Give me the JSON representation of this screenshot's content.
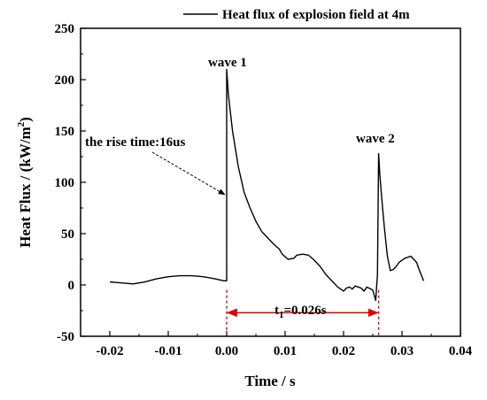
{
  "chart_data": {
    "type": "line",
    "title": "",
    "xlabel": "Time / s",
    "ylabel_main": "Heat Flux / (kW/m",
    "ylabel_sup": "2",
    "ylabel_tail": ")",
    "xlim": [
      -0.025,
      0.04
    ],
    "ylim": [
      -50,
      250
    ],
    "x_ticks": [
      -0.02,
      -0.01,
      0.0,
      0.01,
      0.02,
      0.03,
      0.04
    ],
    "x_tick_labels": [
      "-0.02",
      "-0.01",
      "0.00",
      "0.01",
      "0.02",
      "0.03",
      "0.04"
    ],
    "y_ticks": [
      -50,
      0,
      50,
      100,
      150,
      200,
      250
    ],
    "y_tick_labels": [
      "-50",
      "0",
      "50",
      "100",
      "150",
      "200",
      "250"
    ],
    "grid": false,
    "legend_position": "top-right",
    "series": [
      {
        "name": "Heat flux of explosion field at 4m",
        "color": "#000000",
        "x": [
          -0.02,
          -0.018,
          -0.016,
          -0.014,
          -0.012,
          -0.01,
          -0.008,
          -0.006,
          -0.004,
          -0.002,
          -0.0005,
          0.0,
          0.0,
          0.0003,
          0.001,
          0.002,
          0.003,
          0.004,
          0.005,
          0.006,
          0.007,
          0.008,
          0.009,
          0.0095,
          0.0105,
          0.0115,
          0.012,
          0.013,
          0.014,
          0.015,
          0.016,
          0.017,
          0.018,
          0.019,
          0.02,
          0.0205,
          0.021,
          0.0215,
          0.022,
          0.0225,
          0.023,
          0.0235,
          0.024,
          0.025,
          0.0255,
          0.0258,
          0.026,
          0.0262,
          0.0266,
          0.027,
          0.0275,
          0.028,
          0.0285,
          0.029,
          0.0295,
          0.0305,
          0.0315,
          0.032,
          0.0325,
          0.033,
          0.0337
        ],
        "y": [
          3,
          2,
          1,
          3,
          6,
          8,
          9,
          9,
          8,
          6,
          4,
          4,
          210,
          185,
          150,
          115,
          90,
          75,
          62,
          52,
          46,
          40,
          35,
          30,
          25,
          26,
          29,
          30,
          29,
          24,
          18,
          10,
          4,
          -2,
          -6,
          -3,
          -2,
          -4,
          -1,
          -2,
          -3,
          -6,
          -2,
          -5,
          -15,
          10,
          128,
          108,
          80,
          55,
          28,
          14,
          15,
          18,
          22,
          26,
          28,
          25,
          22,
          14,
          4
        ]
      }
    ],
    "annotations": {
      "wave1": "wave 1",
      "wave2": "wave 2",
      "rise_time": "the rise time:16us",
      "t1_main": "t",
      "t1_sub": "1",
      "t1_value": "=0.026s"
    },
    "annotation_data": {
      "rise_time_arrow_to": [
        0.0,
        88
      ],
      "t1_interval": [
        0.0,
        0.026
      ]
    }
  }
}
